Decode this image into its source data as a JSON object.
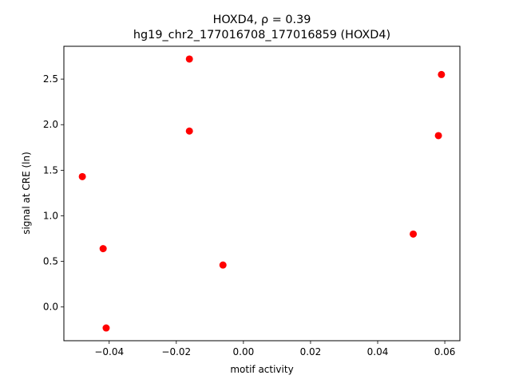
{
  "chart_data": {
    "type": "scatter",
    "title_line1": "HOXD4, ρ = 0.39",
    "title_line2": "hg19_chr2_177016708_177016859 (HOXD4)",
    "xlabel": "motif activity",
    "ylabel": "signal at CRE (ln)",
    "xlim": [
      -0.0535,
      0.0645
    ],
    "ylim": [
      -0.37,
      2.86
    ],
    "xticks": [
      -0.04,
      -0.02,
      0.0,
      0.02,
      0.04,
      0.06
    ],
    "xtick_labels": [
      "−0.04",
      "−0.02",
      "0.00",
      "0.02",
      "0.04",
      "0.06"
    ],
    "yticks": [
      0.0,
      0.5,
      1.0,
      1.5,
      2.0,
      2.5
    ],
    "ytick_labels": [
      "0.0",
      "0.5",
      "1.0",
      "1.5",
      "2.0",
      "2.5"
    ],
    "grid": false,
    "point_color": "#ff0000",
    "points": [
      {
        "x": -0.048,
        "y": 1.43
      },
      {
        "x": -0.0418,
        "y": 0.64
      },
      {
        "x": -0.0409,
        "y": -0.23
      },
      {
        "x": -0.0161,
        "y": 2.72
      },
      {
        "x": -0.0161,
        "y": 1.93
      },
      {
        "x": -0.0061,
        "y": 0.46
      },
      {
        "x": 0.0506,
        "y": 0.8
      },
      {
        "x": 0.0581,
        "y": 1.88
      },
      {
        "x": 0.059,
        "y": 2.55
      }
    ]
  }
}
